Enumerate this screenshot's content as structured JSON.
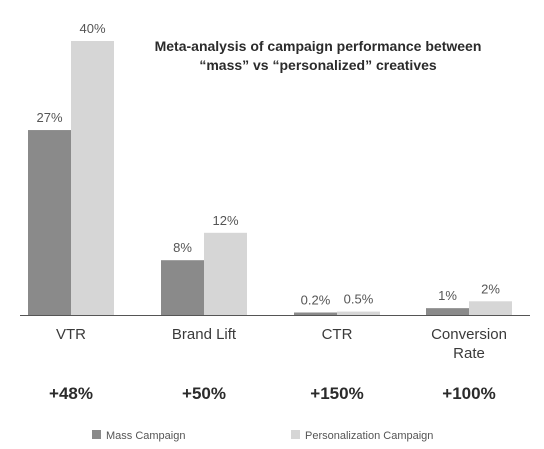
{
  "colors": {
    "mass": "#8a8a8a",
    "personalized": "#d6d6d6",
    "baseline": "#555555"
  },
  "chart_data": {
    "type": "bar",
    "title": "Meta-analysis of campaign performance between “mass” vs “personalized” creatives",
    "title_lines": [
      "Meta-analysis of campaign performance between",
      "“mass” vs “personalized” creatives"
    ],
    "categories": [
      "VTR",
      "Brand Lift",
      "CTR",
      "Conversion Rate"
    ],
    "category_label_lines": [
      [
        "VTR"
      ],
      [
        "Brand Lift"
      ],
      [
        "CTR"
      ],
      [
        "Conversion",
        "Rate"
      ]
    ],
    "series": [
      {
        "name": "Mass Campaign",
        "values": [
          27,
          8,
          0.2,
          1
        ],
        "labels": [
          "27%",
          "8%",
          "0.2%",
          "1%"
        ]
      },
      {
        "name": "Personalization Campaign",
        "values": [
          40,
          12,
          0.5,
          2
        ],
        "labels": [
          "40%",
          "12%",
          "0.5%",
          "2%"
        ]
      }
    ],
    "uplift_labels": [
      "+48%",
      "+50%",
      "+150%",
      "+100%"
    ],
    "ylim": [
      0,
      40
    ],
    "xlabel": "",
    "ylabel": "",
    "grid": false,
    "legend_position": "bottom"
  }
}
